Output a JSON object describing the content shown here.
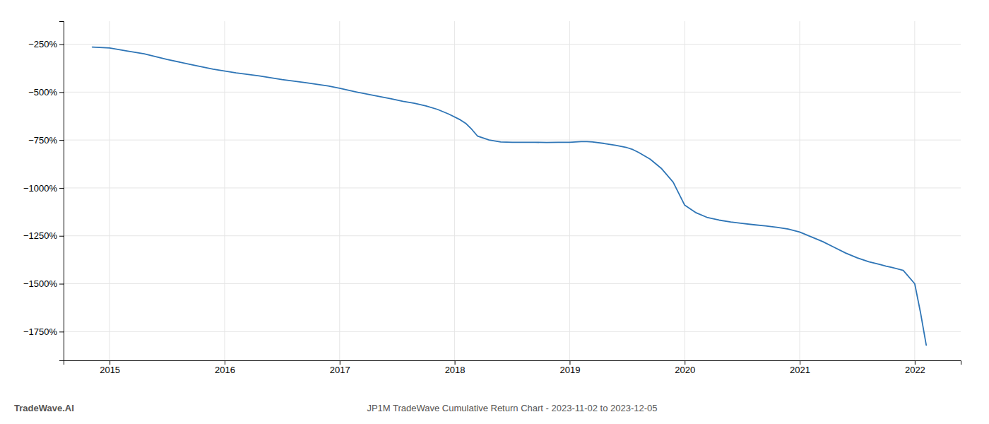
{
  "chart_data": {
    "type": "line",
    "title": "JP1M TradeWave Cumulative Return Chart - 2023-11-02 to 2023-12-05",
    "annotations": [
      "TradeWave.AI"
    ],
    "color": "#2e75b6",
    "grid": true,
    "xlim": [
      2014.6,
      2022.4
    ],
    "xticks": [
      2015,
      2016,
      2017,
      2018,
      2019,
      2020,
      2021,
      2022
    ],
    "ylim": [
      -1900,
      -130
    ],
    "yticks": [
      {
        "value": -250,
        "label": "−250%"
      },
      {
        "value": -500,
        "label": "−500%"
      },
      {
        "value": -750,
        "label": "−750%"
      },
      {
        "value": -1000,
        "label": "−1000%"
      },
      {
        "value": -1250,
        "label": "−1250%"
      },
      {
        "value": -1500,
        "label": "−1500%"
      },
      {
        "value": -1750,
        "label": "−1750%"
      }
    ],
    "x": [
      2014.85,
      2015.0,
      2015.15,
      2015.3,
      2015.5,
      2015.7,
      2015.9,
      2016.1,
      2016.3,
      2016.5,
      2016.7,
      2016.9,
      2017.0,
      2017.15,
      2017.3,
      2017.45,
      2017.55,
      2017.65,
      2017.75,
      2017.85,
      2017.95,
      2018.05,
      2018.1,
      2018.15,
      2018.2,
      2018.3,
      2018.4,
      2018.5,
      2018.6,
      2018.7,
      2018.8,
      2018.9,
      2019.0,
      2019.05,
      2019.1,
      2019.15,
      2019.2,
      2019.3,
      2019.4,
      2019.5,
      2019.55,
      2019.6,
      2019.7,
      2019.8,
      2019.9,
      2020.0,
      2020.1,
      2020.2,
      2020.3,
      2020.4,
      2020.5,
      2020.6,
      2020.7,
      2020.8,
      2020.9,
      2021.0,
      2021.1,
      2021.2,
      2021.3,
      2021.4,
      2021.5,
      2021.6,
      2021.7,
      2021.75,
      2021.8,
      2021.9,
      2022.0,
      2022.05,
      2022.1
    ],
    "values": [
      -265,
      -270,
      -285,
      -300,
      -330,
      -355,
      -380,
      -400,
      -415,
      -435,
      -450,
      -468,
      -480,
      -500,
      -518,
      -535,
      -548,
      -558,
      -572,
      -590,
      -615,
      -645,
      -665,
      -695,
      -730,
      -750,
      -760,
      -762,
      -762,
      -762,
      -763,
      -762,
      -762,
      -760,
      -758,
      -758,
      -760,
      -768,
      -778,
      -790,
      -800,
      -815,
      -850,
      -900,
      -970,
      -1090,
      -1130,
      -1155,
      -1168,
      -1178,
      -1185,
      -1192,
      -1198,
      -1205,
      -1215,
      -1230,
      -1255,
      -1280,
      -1310,
      -1340,
      -1365,
      -1385,
      -1400,
      -1408,
      -1415,
      -1430,
      -1500,
      -1650,
      -1820
    ]
  }
}
